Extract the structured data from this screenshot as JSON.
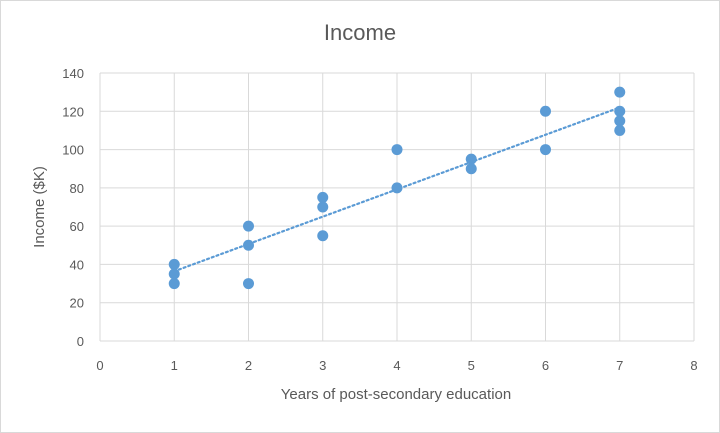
{
  "chart_data": {
    "type": "scatter",
    "title": "Income",
    "xlabel": "Years of post-secondary education",
    "ylabel": "Income ($K)",
    "xlim": [
      0,
      8
    ],
    "ylim": [
      0,
      140
    ],
    "xticks": [
      0,
      1,
      2,
      3,
      4,
      5,
      6,
      7,
      8
    ],
    "yticks": [
      0,
      20,
      40,
      60,
      80,
      100,
      120,
      140
    ],
    "grid": true,
    "legend": "none",
    "trendline": {
      "type": "linear",
      "style": "dotted",
      "x_range": [
        1,
        7
      ]
    },
    "colors": {
      "marker": "#5b9bd5",
      "trendline": "#5b9bd5",
      "grid": "#d9d9d9",
      "text": "#595959"
    },
    "points": [
      {
        "x": 1,
        "y": 40
      },
      {
        "x": 1,
        "y": 35
      },
      {
        "x": 1,
        "y": 30
      },
      {
        "x": 2,
        "y": 60
      },
      {
        "x": 2,
        "y": 50
      },
      {
        "x": 2,
        "y": 30
      },
      {
        "x": 3,
        "y": 75
      },
      {
        "x": 3,
        "y": 70
      },
      {
        "x": 3,
        "y": 55
      },
      {
        "x": 4,
        "y": 100
      },
      {
        "x": 4,
        "y": 80
      },
      {
        "x": 5,
        "y": 95
      },
      {
        "x": 5,
        "y": 90
      },
      {
        "x": 6,
        "y": 120
      },
      {
        "x": 6,
        "y": 100
      },
      {
        "x": 7,
        "y": 130
      },
      {
        "x": 7,
        "y": 120
      },
      {
        "x": 7,
        "y": 115
      },
      {
        "x": 7,
        "y": 110
      }
    ]
  }
}
